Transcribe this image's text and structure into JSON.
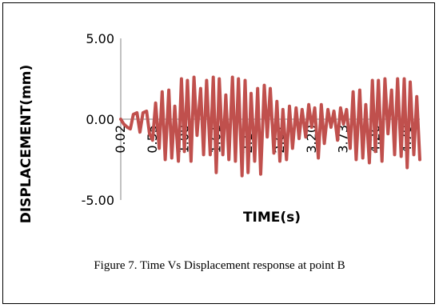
{
  "caption": "Figure 7. Time Vs Displacement response at point B",
  "chart_data": {
    "type": "line",
    "title": "",
    "xlabel": "TIME(s)",
    "ylabel": "DISPLACEMENT(mm)",
    "ylim": [
      -5.0,
      5.0
    ],
    "y_ticks": [
      "5.00",
      "0.00",
      "-5.00"
    ],
    "x_tick_labels": [
      "0.02",
      "0.55",
      "1.08",
      "1.61",
      "2.14",
      "2.67",
      "3.20",
      "3.73",
      "4.26",
      "4.79"
    ],
    "x": [
      0.02,
      0.07,
      0.13,
      0.18,
      0.23,
      0.29,
      0.34,
      0.39,
      0.45,
      0.5,
      0.55,
      0.6,
      0.66,
      0.71,
      0.76,
      0.82,
      0.87,
      0.92,
      0.98,
      1.03,
      1.08,
      1.13,
      1.19,
      1.24,
      1.29,
      1.35,
      1.4,
      1.45,
      1.51,
      1.56,
      1.61,
      1.66,
      1.72,
      1.77,
      1.82,
      1.88,
      1.93,
      1.98,
      2.04,
      2.09,
      2.14,
      2.19,
      2.25,
      2.3,
      2.35,
      2.41,
      2.46,
      2.51,
      2.57,
      2.62,
      2.67,
      2.72,
      2.78,
      2.83,
      2.88,
      2.94,
      2.99,
      3.04,
      3.1,
      3.15,
      3.2,
      3.25,
      3.31,
      3.36,
      3.41,
      3.47,
      3.52,
      3.57,
      3.63,
      3.68,
      3.73,
      3.78,
      3.84,
      3.89,
      3.94,
      4.0,
      4.05,
      4.1,
      4.16,
      4.21,
      4.26,
      4.31,
      4.37,
      4.42,
      4.47,
      4.53,
      4.58,
      4.63,
      4.69,
      4.74,
      4.79,
      4.84,
      4.9,
      4.95,
      5.0
    ],
    "series": [
      {
        "color": "#c0504d",
        "values": [
          0.0,
          -0.3,
          -0.5,
          -0.6,
          0.3,
          0.4,
          -0.8,
          0.4,
          0.5,
          -0.9,
          -1.3,
          1.0,
          -1.8,
          1.7,
          -2.5,
          1.8,
          -2.4,
          0.8,
          -2.6,
          2.5,
          -2.0,
          2.4,
          -2.6,
          2.6,
          -1.0,
          1.9,
          -2.2,
          2.4,
          -2.2,
          2.6,
          -3.3,
          2.5,
          -2.2,
          1.5,
          -2.5,
          2.6,
          -2.6,
          2.5,
          -3.5,
          2.4,
          -3.3,
          1.6,
          -2.6,
          1.9,
          -3.4,
          2.1,
          -1.1,
          1.9,
          -2.1,
          1.1,
          -2.6,
          0.6,
          -2.5,
          0.8,
          -1.8,
          0.7,
          -1.2,
          0.6,
          -1.1,
          0.9,
          -0.5,
          0.7,
          -2.4,
          0.9,
          -1.5,
          0.6,
          -0.5,
          0.5,
          -1.3,
          0.7,
          -0.3,
          0.6,
          -1.8,
          1.7,
          -2.5,
          1.8,
          -2.4,
          0.9,
          -2.7,
          2.4,
          -2.0,
          2.4,
          -2.6,
          2.5,
          -0.9,
          1.8,
          -2.2,
          2.5,
          -2.3,
          2.5,
          -3.0,
          2.3,
          -2.2,
          1.4,
          -2.5
        ]
      }
    ],
    "grid": false,
    "legend": "none"
  }
}
